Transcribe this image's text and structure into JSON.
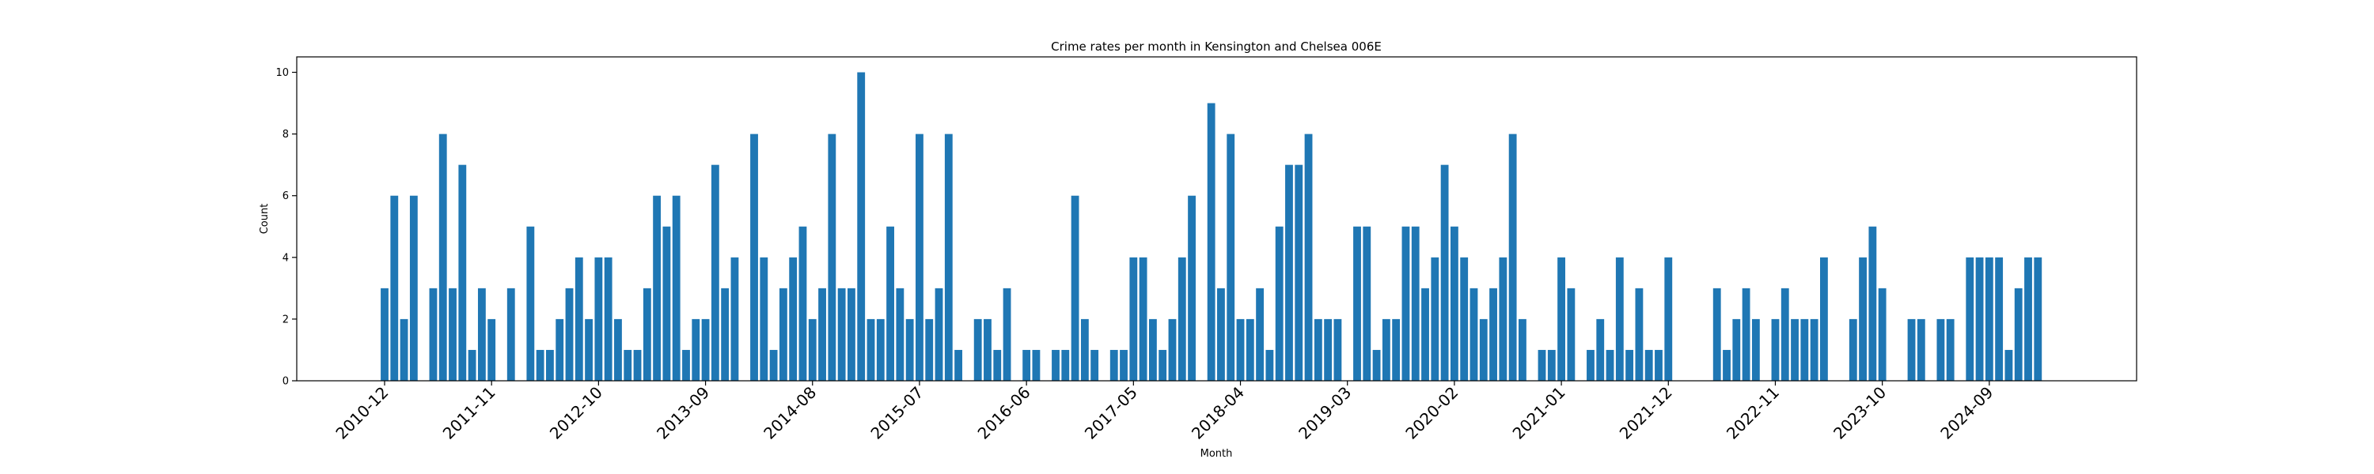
{
  "chart_data": {
    "type": "bar",
    "title": "Crime rates per month in Kensington and Chelsea 006E",
    "xlabel": "Month",
    "ylabel": "Count",
    "ylim": [
      0,
      10.5
    ],
    "yticks": [
      0,
      2,
      4,
      6,
      8,
      10
    ],
    "xticks": [
      "2010-12",
      "2011-11",
      "2012-10",
      "2013-09",
      "2014-08",
      "2015-07",
      "2016-06",
      "2017-05",
      "2018-04",
      "2019-03",
      "2020-02",
      "2021-01",
      "2021-12",
      "2022-11",
      "2023-10",
      "2024-09"
    ],
    "grid": false,
    "color": "#1f77b4",
    "categories": [
      "2010-12",
      "2011-01",
      "2011-02",
      "2011-03",
      "2011-04",
      "2011-05",
      "2011-06",
      "2011-07",
      "2011-08",
      "2011-09",
      "2011-10",
      "2011-11",
      "2011-12",
      "2012-01",
      "2012-02",
      "2012-03",
      "2012-04",
      "2012-05",
      "2012-06",
      "2012-07",
      "2012-08",
      "2012-09",
      "2012-10",
      "2012-11",
      "2012-12",
      "2013-01",
      "2013-02",
      "2013-03",
      "2013-04",
      "2013-05",
      "2013-06",
      "2013-07",
      "2013-08",
      "2013-09",
      "2013-10",
      "2013-11",
      "2013-12",
      "2014-01",
      "2014-02",
      "2014-03",
      "2014-04",
      "2014-05",
      "2014-06",
      "2014-07",
      "2014-08",
      "2014-09",
      "2014-10",
      "2014-11",
      "2014-12",
      "2015-01",
      "2015-02",
      "2015-03",
      "2015-04",
      "2015-05",
      "2015-06",
      "2015-07",
      "2015-08",
      "2015-09",
      "2015-10",
      "2015-11",
      "2015-12",
      "2016-01",
      "2016-02",
      "2016-03",
      "2016-04",
      "2016-05",
      "2016-06",
      "2016-07",
      "2016-08",
      "2016-09",
      "2016-10",
      "2016-11",
      "2016-12",
      "2017-01",
      "2017-02",
      "2017-03",
      "2017-04",
      "2017-05",
      "2017-06",
      "2017-07",
      "2017-08",
      "2017-09",
      "2017-10",
      "2017-11",
      "2017-12",
      "2018-01",
      "2018-02",
      "2018-03",
      "2018-04",
      "2018-05",
      "2018-06",
      "2018-07",
      "2018-08",
      "2018-09",
      "2018-10",
      "2018-11",
      "2018-12",
      "2019-01",
      "2019-02",
      "2019-03",
      "2019-04",
      "2019-05",
      "2019-06",
      "2019-07",
      "2019-08",
      "2019-09",
      "2019-10",
      "2019-11",
      "2019-12",
      "2020-01",
      "2020-02",
      "2020-03",
      "2020-04",
      "2020-05",
      "2020-06",
      "2020-07",
      "2020-08",
      "2020-09",
      "2020-10",
      "2020-11",
      "2020-12",
      "2021-01",
      "2021-02",
      "2021-03",
      "2021-04",
      "2021-05",
      "2021-06",
      "2021-07",
      "2021-08",
      "2021-09",
      "2021-10",
      "2021-11",
      "2021-12",
      "2022-01",
      "2022-02",
      "2022-03",
      "2022-04",
      "2022-05",
      "2022-06",
      "2022-07",
      "2022-08",
      "2022-09",
      "2022-10",
      "2022-11",
      "2022-12",
      "2023-01",
      "2023-02",
      "2023-03",
      "2023-04",
      "2023-05",
      "2023-06",
      "2023-07",
      "2023-08",
      "2023-09",
      "2023-10",
      "2023-11",
      "2023-12",
      "2024-01",
      "2024-02",
      "2024-03",
      "2024-04",
      "2024-05",
      "2024-06",
      "2024-07",
      "2024-08",
      "2024-09",
      "2024-10",
      "2024-11",
      "2024-12",
      "2025-01",
      "2025-02"
    ],
    "values": [
      3,
      6,
      2,
      6,
      0,
      3,
      8,
      3,
      7,
      1,
      3,
      2,
      0,
      3,
      0,
      5,
      1,
      1,
      2,
      3,
      4,
      2,
      4,
      4,
      2,
      1,
      1,
      3,
      6,
      5,
      6,
      1,
      2,
      2,
      7,
      3,
      4,
      0,
      8,
      4,
      1,
      3,
      4,
      5,
      2,
      3,
      8,
      3,
      3,
      10,
      2,
      2,
      5,
      3,
      2,
      8,
      2,
      3,
      8,
      1,
      0,
      2,
      2,
      1,
      3,
      0,
      1,
      1,
      0,
      1,
      1,
      6,
      2,
      1,
      0,
      1,
      1,
      4,
      4,
      2,
      1,
      2,
      4,
      6,
      0,
      9,
      3,
      8,
      2,
      2,
      3,
      1,
      5,
      7,
      7,
      8,
      2,
      2,
      2,
      0,
      5,
      5,
      1,
      2,
      2,
      5,
      5,
      3,
      4,
      7,
      5,
      4,
      3,
      2,
      3,
      4,
      8,
      2,
      0,
      1,
      1,
      4,
      3,
      0,
      1,
      2,
      1,
      4,
      1,
      3,
      1,
      1,
      4,
      0,
      0,
      0,
      0,
      3,
      1,
      2,
      3,
      2,
      0,
      2,
      3,
      2,
      2,
      2,
      4,
      0,
      0,
      2,
      4,
      5,
      3,
      0,
      0,
      2,
      2,
      0,
      2,
      2,
      0,
      4,
      4,
      4,
      4,
      1,
      3,
      4,
      4
    ]
  }
}
